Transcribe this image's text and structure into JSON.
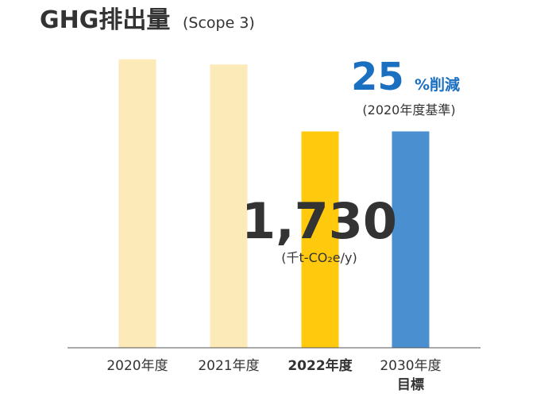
{
  "title": {
    "main": "GHG排出量",
    "sub": "(Scope 3)"
  },
  "colors": {
    "bar_past": "#FCEAB8",
    "bar_current": "#FFC90E",
    "bar_target": "#4A8FD0",
    "reduction_text": "#1A6FC0",
    "axis": "#555555"
  },
  "highlight": {
    "value": "1,730",
    "unit": "(千t-CO₂e/y)"
  },
  "reduction": {
    "number": "25",
    "label": "%削減",
    "base": "(2020年度基準)"
  },
  "chart_data": {
    "type": "bar",
    "categories": [
      "2020年度",
      "2021年度",
      "2022年度",
      "2030年度"
    ],
    "sublabels": [
      "",
      "",
      "",
      "目標"
    ],
    "values": [
      2307,
      2265,
      1730,
      1730
    ],
    "series_roles": [
      "past",
      "past",
      "current",
      "target"
    ],
    "bold_categories": [
      "2022年度",
      "2030年度"
    ],
    "title": "GHG排出量 (Scope 3)",
    "xlabel": "",
    "ylabel": "",
    "ylim": [
      0,
      2400
    ],
    "grid": false,
    "legend": "none"
  }
}
